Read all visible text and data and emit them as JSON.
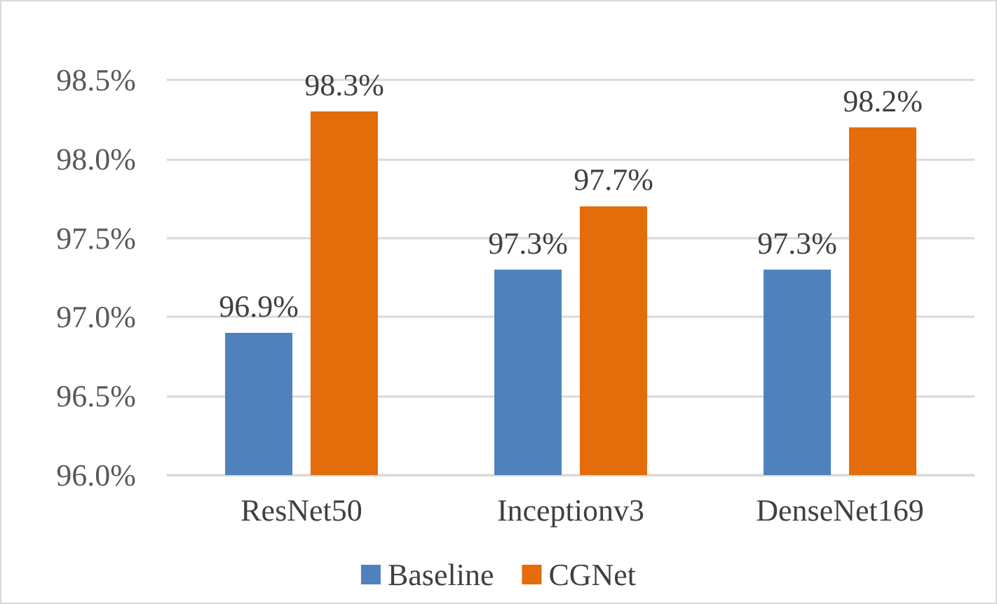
{
  "chart_data": {
    "type": "bar",
    "categories": [
      "ResNet50",
      "Inceptionv3",
      "DenseNet169"
    ],
    "series": [
      {
        "name": "Baseline",
        "color": "#4f81bd",
        "values": [
          96.9,
          97.3,
          97.3
        ],
        "value_labels": [
          "96.9%",
          "97.3%",
          "97.3%"
        ]
      },
      {
        "name": "CGNet",
        "color": "#e46c0a",
        "values": [
          98.3,
          97.7,
          98.2
        ],
        "value_labels": [
          "98.3%",
          "97.7%",
          "98.2%"
        ]
      }
    ],
    "ylim": [
      96,
      98.5
    ],
    "yticks": [
      {
        "value": 96,
        "label": "96.0%"
      },
      {
        "value": 96.5,
        "label": "96.5%"
      },
      {
        "value": 97,
        "label": "97.0%"
      },
      {
        "value": 97.5,
        "label": "97.5%"
      },
      {
        "value": 98,
        "label": "98.0%"
      },
      {
        "value": 98.5,
        "label": "98.5%"
      }
    ],
    "grid": "y",
    "legend": "bottom"
  }
}
